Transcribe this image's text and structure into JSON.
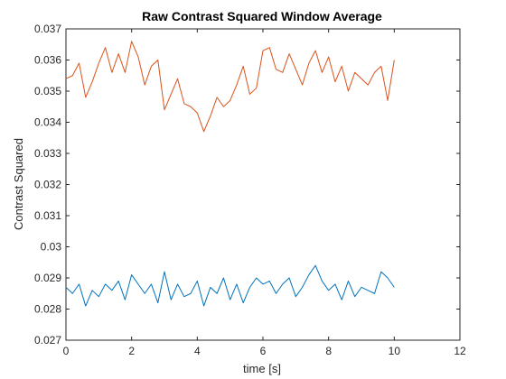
{
  "chart_data": {
    "type": "line",
    "title": "Raw Contrast Squared Window Average",
    "xlabel": "time [s]",
    "ylabel": "Contrast Squared",
    "xlim": [
      0,
      12
    ],
    "ylim": [
      0.027,
      0.037
    ],
    "x_ticks": [
      0,
      2,
      4,
      6,
      8,
      10,
      12
    ],
    "x_tick_labels": [
      "0",
      "2",
      "4",
      "6",
      "8",
      "10",
      "12"
    ],
    "y_ticks": [
      0.027,
      0.028,
      0.029,
      0.03,
      0.031,
      0.032,
      0.033,
      0.034,
      0.035,
      0.036,
      0.037
    ],
    "y_tick_labels": [
      "0.027",
      "0.028",
      "0.029",
      "0.03",
      "0.031",
      "0.032",
      "0.033",
      "0.034",
      "0.035",
      "0.036",
      "0.037"
    ],
    "grid": false,
    "x": [
      0.0,
      0.2,
      0.4,
      0.6,
      0.8,
      1.0,
      1.2,
      1.4,
      1.6,
      1.8,
      2.0,
      2.2,
      2.4,
      2.6,
      2.8,
      3.0,
      3.2,
      3.4,
      3.6,
      3.8,
      4.0,
      4.2,
      4.4,
      4.6,
      4.8,
      5.0,
      5.2,
      5.4,
      5.6,
      5.8,
      6.0,
      6.2,
      6.4,
      6.6,
      6.8,
      7.0,
      7.2,
      7.4,
      7.6,
      7.8,
      8.0,
      8.2,
      8.4,
      8.6,
      8.8,
      9.0,
      9.2,
      9.4,
      9.6,
      9.8,
      10.0
    ],
    "series": [
      {
        "color": "#D95319",
        "values": [
          0.0354,
          0.0355,
          0.0359,
          0.0348,
          0.0353,
          0.0359,
          0.0364,
          0.0356,
          0.0362,
          0.0356,
          0.0366,
          0.0361,
          0.0352,
          0.0358,
          0.036,
          0.0344,
          0.0349,
          0.0354,
          0.0346,
          0.0345,
          0.0343,
          0.0337,
          0.0342,
          0.0348,
          0.0345,
          0.0347,
          0.0352,
          0.0358,
          0.0349,
          0.0351,
          0.0363,
          0.0364,
          0.0357,
          0.0356,
          0.0362,
          0.0357,
          0.0352,
          0.0359,
          0.0363,
          0.0356,
          0.0361,
          0.0353,
          0.0358,
          0.035,
          0.0356,
          0.0354,
          0.0352,
          0.0356,
          0.0358,
          0.0347,
          0.036
        ]
      },
      {
        "color": "#0072BD",
        "values": [
          0.0287,
          0.0285,
          0.0288,
          0.0281,
          0.0286,
          0.0284,
          0.0288,
          0.0286,
          0.0289,
          0.0283,
          0.0291,
          0.0288,
          0.0285,
          0.0288,
          0.0282,
          0.0292,
          0.0283,
          0.0288,
          0.0284,
          0.0285,
          0.0289,
          0.0281,
          0.0287,
          0.0285,
          0.029,
          0.0283,
          0.0288,
          0.0282,
          0.0287,
          0.029,
          0.0288,
          0.0289,
          0.0285,
          0.0288,
          0.029,
          0.0284,
          0.0287,
          0.0291,
          0.0294,
          0.0289,
          0.0286,
          0.0288,
          0.0283,
          0.0289,
          0.0284,
          0.0287,
          0.0286,
          0.0285,
          0.0292,
          0.029,
          0.0287
        ]
      }
    ]
  }
}
